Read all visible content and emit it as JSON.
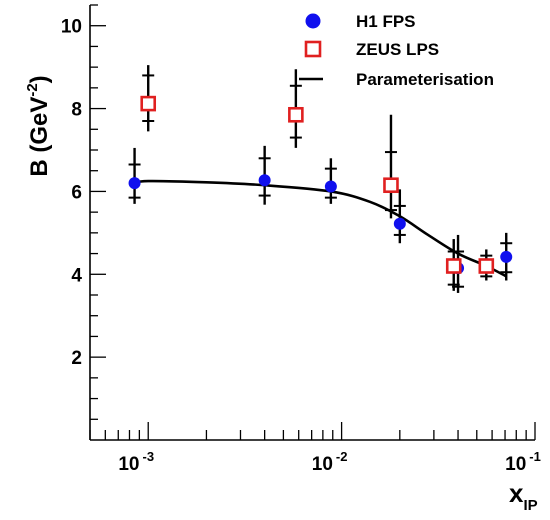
{
  "chart_data": {
    "type": "scatter",
    "title": "",
    "xlabel_main": "x",
    "xlabel_sub": "IP",
    "ylabel_main": "B (GeV",
    "ylabel_sup": "-2",
    "ylabel_close": ")",
    "x_scale": "log",
    "xlim": [
      0.0005,
      0.1
    ],
    "ylim": [
      0,
      10.5
    ],
    "x_ticks": [
      {
        "value": 0.001,
        "base": "10",
        "exp": "-3"
      },
      {
        "value": 0.01,
        "base": "10",
        "exp": "-2"
      },
      {
        "value": 0.1,
        "base": "10",
        "exp": "-1"
      }
    ],
    "y_ticks": [
      {
        "value": 2,
        "label": "2"
      },
      {
        "value": 4,
        "label": "4"
      },
      {
        "value": 6,
        "label": "6"
      },
      {
        "value": 8,
        "label": "8"
      },
      {
        "value": 10,
        "label": "10"
      }
    ],
    "legend_position": "top-right",
    "series": [
      {
        "name": "H1 FPS",
        "marker": "circle",
        "color": "#1010ee",
        "points": [
          {
            "x": 0.00085,
            "y": 6.2,
            "err_tot": [
              5.7,
              7.05
            ],
            "err_stat": [
              5.85,
              6.65
            ]
          },
          {
            "x": 0.004,
            "y": 6.27,
            "err_tot": [
              5.68,
              7.1
            ],
            "err_stat": [
              5.9,
              6.8
            ]
          },
          {
            "x": 0.0088,
            "y": 6.12,
            "err_tot": [
              5.7,
              6.8
            ],
            "err_stat": [
              5.85,
              6.55
            ]
          },
          {
            "x": 0.02,
            "y": 5.22,
            "err_tot": [
              4.75,
              6.05
            ],
            "err_stat": [
              4.95,
              5.65
            ]
          },
          {
            "x": 0.04,
            "y": 4.15,
            "err_tot": [
              3.55,
              4.95
            ],
            "err_stat": [
              3.7,
              4.55
            ]
          },
          {
            "x": 0.071,
            "y": 4.42,
            "err_tot": [
              3.85,
              5.0
            ],
            "err_stat": [
              4.05,
              4.75
            ]
          }
        ]
      },
      {
        "name": "ZEUS LPS",
        "marker": "open-square",
        "color": "#e02020",
        "points": [
          {
            "x": 0.001,
            "y": 8.12,
            "err_tot": [
              7.45,
              9.05
            ],
            "err_stat": [
              7.7,
              8.8
            ]
          },
          {
            "x": 0.0058,
            "y": 7.85,
            "err_tot": [
              7.05,
              8.95
            ],
            "err_stat": [
              7.3,
              8.55
            ]
          },
          {
            "x": 0.018,
            "y": 6.15,
            "err_tot": [
              5.35,
              7.85
            ],
            "err_stat": [
              5.55,
              6.95
            ]
          },
          {
            "x": 0.038,
            "y": 4.2,
            "err_tot": [
              3.6,
              4.85
            ],
            "err_stat": [
              3.75,
              4.55
            ]
          },
          {
            "x": 0.056,
            "y": 4.2,
            "err_tot": [
              3.85,
              4.6
            ],
            "err_stat": [
              3.95,
              4.45
            ]
          }
        ]
      },
      {
        "name": "Parameterisation",
        "marker": "line",
        "color": "#000000",
        "points": [
          {
            "x": 0.00085,
            "y": 6.2
          },
          {
            "x": 0.001,
            "y": 6.25
          },
          {
            "x": 0.002,
            "y": 6.22
          },
          {
            "x": 0.004,
            "y": 6.15
          },
          {
            "x": 0.0088,
            "y": 6.0
          },
          {
            "x": 0.014,
            "y": 5.75
          },
          {
            "x": 0.02,
            "y": 5.4
          },
          {
            "x": 0.028,
            "y": 4.95
          },
          {
            "x": 0.04,
            "y": 4.5
          },
          {
            "x": 0.056,
            "y": 4.2
          },
          {
            "x": 0.071,
            "y": 3.95
          }
        ]
      }
    ]
  }
}
